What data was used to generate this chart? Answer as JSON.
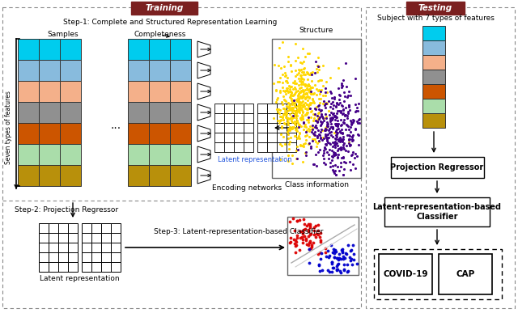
{
  "title_training": "Training",
  "title_testing": "Testing",
  "step1_text": "Step-1: Complete and Structured Representation Learning",
  "completeness_text": "Completeness",
  "samples_text": "Samples",
  "structure_text": "Structure",
  "class_info_text": "Class information",
  "encoding_text": "Encoding networks",
  "latent_text": "Latent representation",
  "seven_types_text": "Seven types of features",
  "subject_text": "Subject with 7 types of features",
  "proj_reg_text": "Projection Regressor",
  "latent_classifier_text": "Latent-representation-based\nClassifier",
  "step2_text": "Step-2: Projection Regressor",
  "step3_text": "Step-3: Latent-representation-based Classifier",
  "latent_rep_text": "Latent representation",
  "covid_text": "COVID-19",
  "cap_text": "CAP",
  "row_colors": [
    "#00CCEE",
    "#88BBDD",
    "#F4B08A",
    "#909090",
    "#CC5500",
    "#AADDAA",
    "#B8900B"
  ],
  "bg_color": "#FFFFFF",
  "training_header_color": "#7B2020",
  "testing_header_color": "#7B2020",
  "scatter_yellow": "#FFD700",
  "scatter_purple": "#440088",
  "scatter_red": "#DD0000",
  "scatter_blue": "#0000CC"
}
